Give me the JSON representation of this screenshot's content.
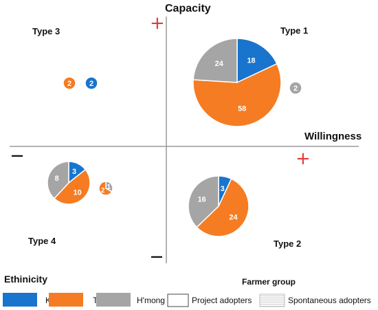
{
  "chart_data": {
    "type": "pie",
    "axes": {
      "y_label": "Capacity",
      "x_label": "Willingness",
      "plus": "+",
      "minus": "—"
    },
    "quadrants": [
      "Type 1",
      "Type 2",
      "Type 3",
      "Type 4"
    ],
    "colors": {
      "Kinh": "#1874CD",
      "Thai": "#F57C22",
      "H'mong": "#A5A5A5"
    },
    "pies": [
      {
        "quadrant": "Type 1",
        "group": "Project adopters",
        "slices": [
          {
            "ethnicity": "Kinh",
            "value": 18
          },
          {
            "ethnicity": "Thai",
            "value": 58
          },
          {
            "ethnicity": "H'mong",
            "value": 24
          }
        ]
      },
      {
        "quadrant": "Type 1",
        "group": "Spontaneous adopters",
        "slices": [
          {
            "ethnicity": "H'mong",
            "value": 2
          }
        ]
      },
      {
        "quadrant": "Type 2",
        "group": "Project adopters",
        "slices": [
          {
            "ethnicity": "Kinh",
            "value": 3
          },
          {
            "ethnicity": "Thai",
            "value": 24
          },
          {
            "ethnicity": "H'mong",
            "value": 16
          }
        ]
      },
      {
        "quadrant": "Type 3",
        "group": "Spontaneous adopters",
        "slices": [
          {
            "ethnicity": "Thai",
            "value": 2
          }
        ]
      },
      {
        "quadrant": "Type 3",
        "group": "Spontaneous adopters",
        "slices": [
          {
            "ethnicity": "Kinh",
            "value": 2
          }
        ]
      },
      {
        "quadrant": "Type 4",
        "group": "Project adopters",
        "slices": [
          {
            "ethnicity": "Kinh",
            "value": 3
          },
          {
            "ethnicity": "Thai",
            "value": 10
          },
          {
            "ethnicity": "H'mong",
            "value": 8
          }
        ]
      },
      {
        "quadrant": "Type 4",
        "group": "Spontaneous adopters",
        "slices": [
          {
            "ethnicity": "H'mong",
            "value": 1
          },
          {
            "ethnicity": "Thai",
            "value": 2
          }
        ]
      }
    ],
    "legend": {
      "ethnicity_title": "Ethinicity",
      "ethnicity_items": [
        "Kinh",
        "Thai",
        "H'mong"
      ],
      "group_title": "Farmer group",
      "group_items": [
        "Project adopters",
        "Spontaneous adopters"
      ]
    }
  }
}
